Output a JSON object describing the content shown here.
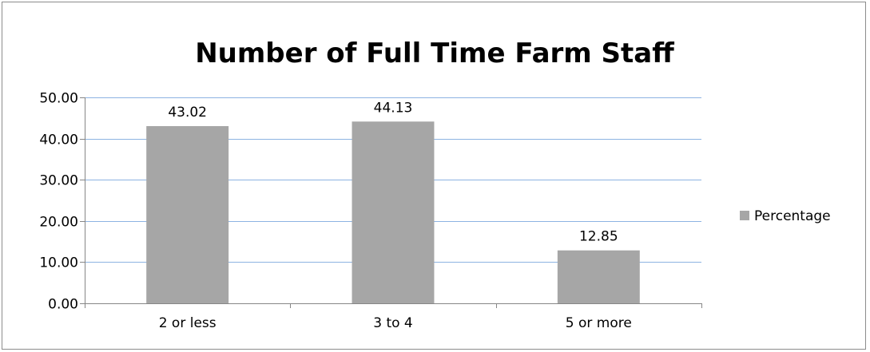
{
  "chart_data": {
    "type": "bar",
    "title": "Number of Full Time Farm Staff",
    "categories": [
      "2 or less",
      "3 to 4",
      "5 or more"
    ],
    "series": [
      {
        "name": "Percentage",
        "values": [
          43.02,
          44.13,
          12.85
        ],
        "color": "#a6a6a6"
      }
    ],
    "data_labels": [
      "43.02",
      "44.13",
      "12.85"
    ],
    "ylim": [
      0,
      50
    ],
    "yticks": [
      "0.00",
      "10.00",
      "20.00",
      "30.00",
      "40.00",
      "50.00"
    ],
    "xlabel": "",
    "ylabel": "",
    "grid": true,
    "gridline_color": "#8db3e2",
    "legend_position": "right"
  }
}
